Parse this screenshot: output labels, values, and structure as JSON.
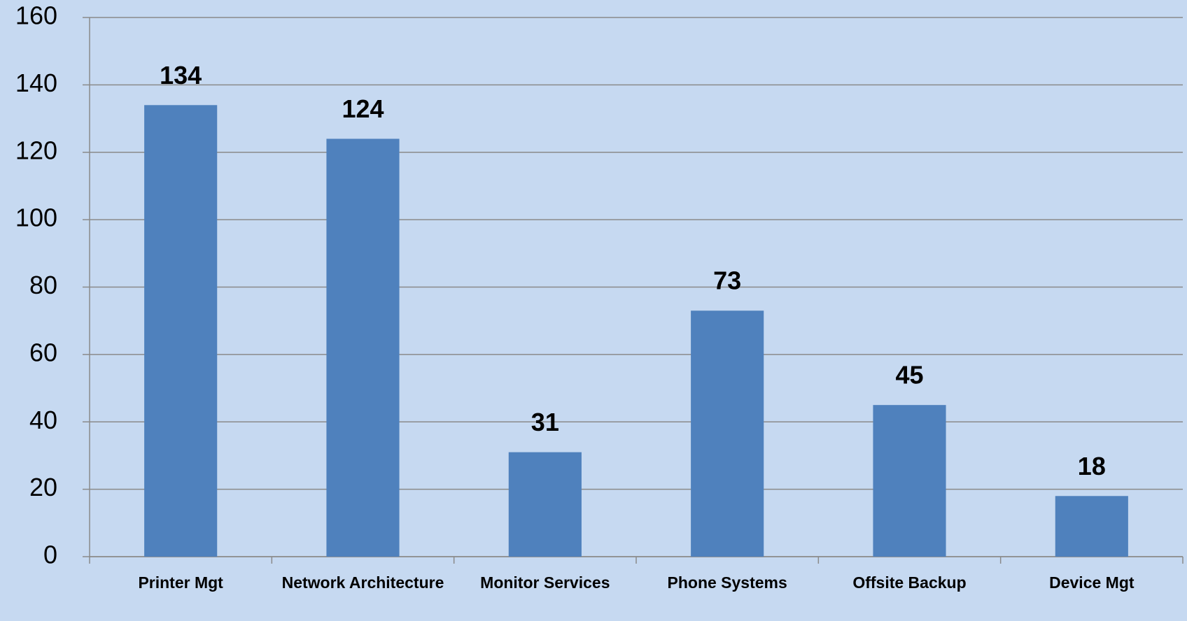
{
  "chart_data": {
    "type": "bar",
    "categories": [
      "Printer Mgt",
      "Network Architecture",
      "Monitor Services",
      "Phone Systems",
      "Offsite Backup",
      "Device Mgt"
    ],
    "values": [
      134,
      124,
      31,
      73,
      45,
      18
    ],
    "color": "#4f81bd",
    "ylim": [
      0,
      160
    ],
    "yticks": [
      0,
      20,
      40,
      60,
      80,
      100,
      120,
      140,
      160
    ],
    "grid": true
  }
}
